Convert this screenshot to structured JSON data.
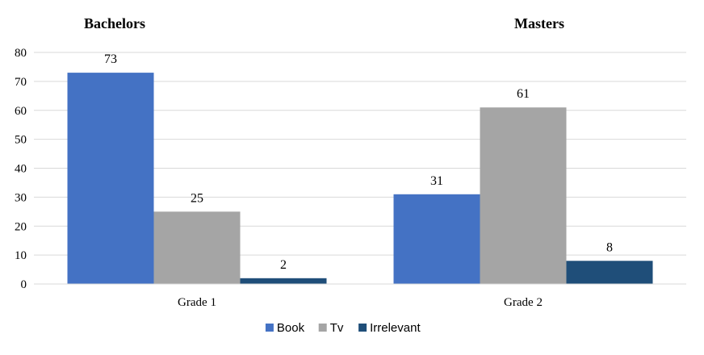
{
  "chart_data": {
    "type": "bar",
    "categories": [
      "Grade 1",
      "Grade 2"
    ],
    "group_titles": [
      "Bachelors",
      "Masters"
    ],
    "series": [
      {
        "name": "Book",
        "values": [
          73,
          31
        ],
        "color": "#4472C4"
      },
      {
        "name": "Tv",
        "values": [
          25,
          61
        ],
        "color": "#A5A5A5"
      },
      {
        "name": "Irrelevant",
        "values": [
          2,
          8
        ],
        "color": "#1F4E79"
      }
    ],
    "ylim": [
      0,
      80
    ],
    "yticks": [
      0,
      10,
      20,
      30,
      40,
      50,
      60,
      70,
      80
    ],
    "grid": true,
    "legend_position": "bottom"
  }
}
